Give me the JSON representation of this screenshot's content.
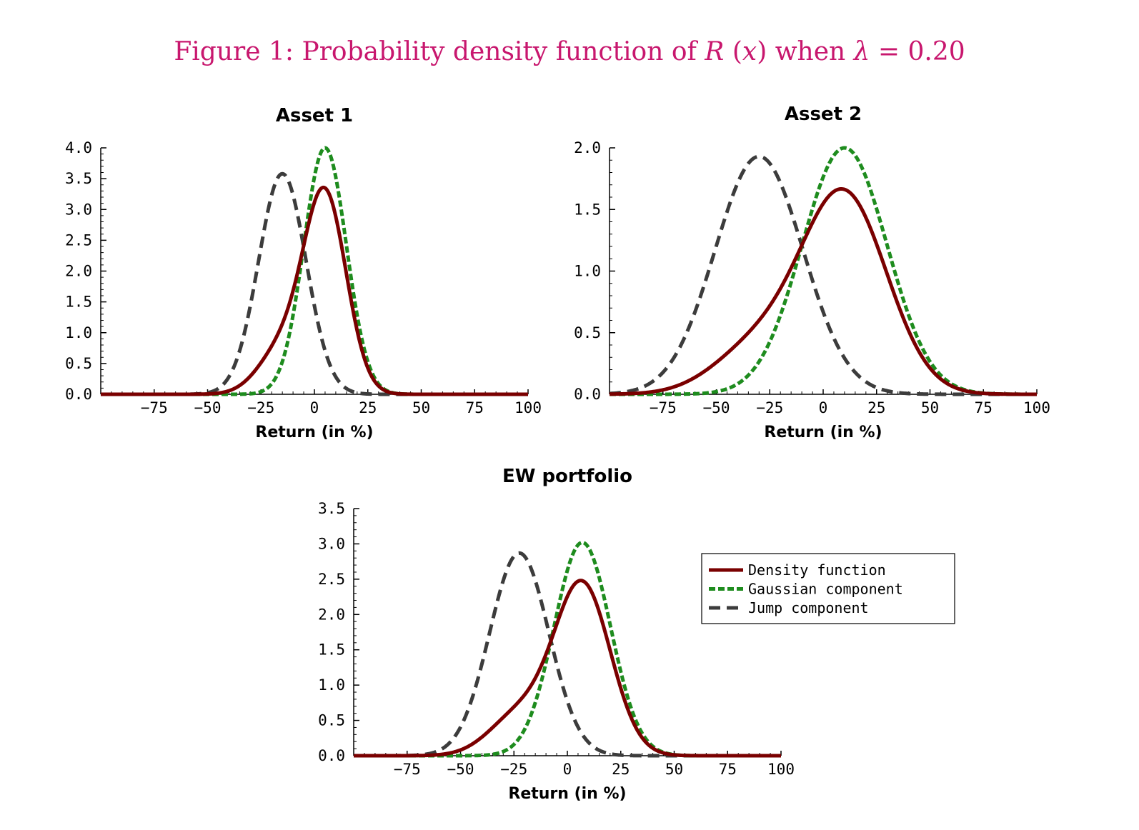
{
  "figure_title": {
    "prefix": "Figure 1: Probability density function of ",
    "func": "R",
    "paren_open": " (",
    "var": "x",
    "paren_close": ") when ",
    "lambda": "λ",
    "eq": " = 0.20"
  },
  "colors": {
    "density": "#7a0000",
    "gaussian": "#1e8c1e",
    "jump": "#3c3c3c",
    "title": "#c8176e"
  },
  "legend": {
    "entries": [
      "Density function",
      "Gaussian component",
      "Jump component"
    ]
  },
  "chart_data": [
    {
      "type": "line",
      "title": "Asset 1",
      "xlabel": "Return (in %)",
      "ylabel": "",
      "xlim": [
        -100,
        100
      ],
      "ylim": [
        0,
        4.0
      ],
      "xticks": [
        -75,
        -50,
        -25,
        0,
        25,
        50,
        75,
        100
      ],
      "xtick_labels": [
        "−75",
        "−50",
        "−25",
        "0",
        "25",
        "50",
        "75",
        "100"
      ],
      "yticks": [
        0,
        0.5,
        1.0,
        1.5,
        2.0,
        2.5,
        3.0,
        3.5,
        4.0
      ],
      "ytick_labels": [
        "0.0",
        "0.5",
        "1.0",
        "1.5",
        "2.0",
        "2.5",
        "3.0",
        "3.5",
        "4.0"
      ],
      "legend": false,
      "series": [
        {
          "name": "Density function",
          "style": "density",
          "mix": {
            "w": 0.8,
            "mu_g": 5,
            "sd_g": 9.95,
            "mu_j": -15,
            "sd_j": 11.1
          }
        },
        {
          "name": "Gaussian component",
          "style": "gaussian",
          "peak": 4.0,
          "mu": 5,
          "sd": 9.95
        },
        {
          "name": "Jump component",
          "style": "jump",
          "peak": 3.58,
          "mu": -15,
          "sd": 11.1
        }
      ]
    },
    {
      "type": "line",
      "title": "Asset 2",
      "xlabel": "Return (in %)",
      "ylabel": "",
      "xlim": [
        -100,
        100
      ],
      "ylim": [
        0,
        2.0
      ],
      "xticks": [
        -75,
        -50,
        -25,
        0,
        25,
        50,
        75,
        100
      ],
      "xtick_labels": [
        "−75",
        "−50",
        "−25",
        "0",
        "25",
        "50",
        "75",
        "100"
      ],
      "yticks": [
        0,
        0.5,
        1.0,
        1.5,
        2.0
      ],
      "ytick_labels": [
        "0.0",
        "0.5",
        "1.0",
        "1.5",
        "2.0"
      ],
      "legend": false,
      "series": [
        {
          "name": "Density function",
          "style": "density",
          "mix": {
            "w": 0.8,
            "mu_g": 10,
            "sd_g": 19.9,
            "mu_j": -30,
            "sd_j": 20.6
          }
        },
        {
          "name": "Gaussian component",
          "style": "gaussian",
          "peak": 2.0,
          "mu": 10,
          "sd": 19.9
        },
        {
          "name": "Jump component",
          "style": "jump",
          "peak": 1.93,
          "mu": -30,
          "sd": 20.6
        }
      ]
    },
    {
      "type": "line",
      "title": "EW portfolio",
      "xlabel": "Return (in %)",
      "ylabel": "",
      "xlim": [
        -100,
        100
      ],
      "ylim": [
        0,
        3.5
      ],
      "xticks": [
        -75,
        -50,
        -25,
        0,
        25,
        50,
        75,
        100
      ],
      "xtick_labels": [
        "−75",
        "−50",
        "−25",
        "0",
        "25",
        "50",
        "75",
        "100"
      ],
      "yticks": [
        0,
        0.5,
        1.0,
        1.5,
        2.0,
        2.5,
        3.0,
        3.5
      ],
      "ytick_labels": [
        "0.0",
        "0.5",
        "1.0",
        "1.5",
        "2.0",
        "2.5",
        "3.0",
        "3.5"
      ],
      "legend": true,
      "legend_position": "right",
      "series": [
        {
          "name": "Density function",
          "style": "density",
          "mix": {
            "w": 0.8,
            "mu_g": 7,
            "sd_g": 13.2,
            "mu_j": -22.5,
            "sd_j": 13.9
          }
        },
        {
          "name": "Gaussian component",
          "style": "gaussian",
          "peak": 3.02,
          "mu": 7,
          "sd": 13.2
        },
        {
          "name": "Jump component",
          "style": "jump",
          "peak": 2.87,
          "mu": -22.5,
          "sd": 13.9
        }
      ]
    }
  ]
}
